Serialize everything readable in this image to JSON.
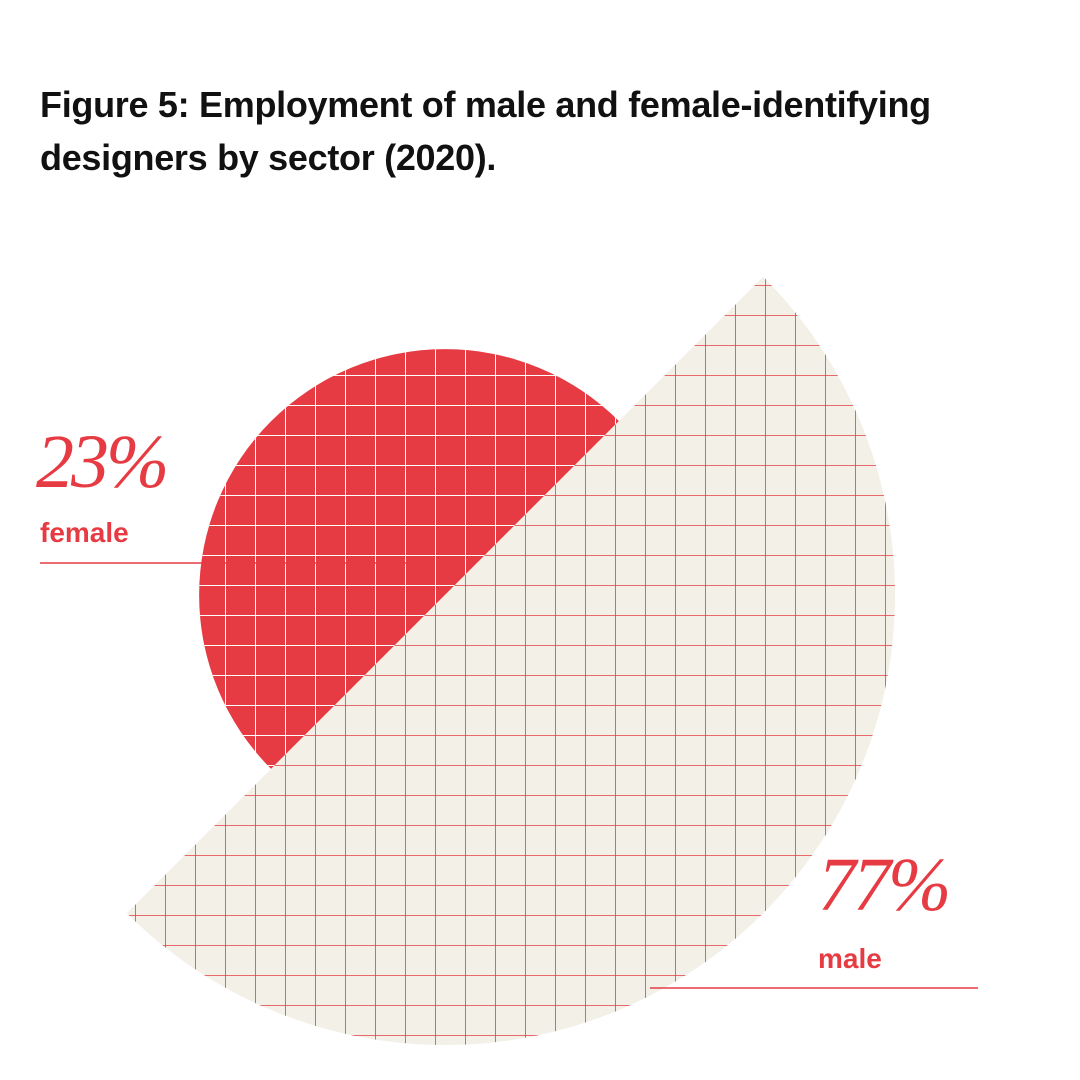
{
  "chart_data": {
    "type": "half-discs",
    "title": "Figure 5: Employment of male and female-identifying designers by sector (2020).",
    "categories": [
      "female",
      "male"
    ],
    "values": [
      23,
      77
    ],
    "value_labels": [
      "23%",
      "77%"
    ],
    "colors": [
      "#e63b43",
      "#f3f0e8"
    ]
  }
}
